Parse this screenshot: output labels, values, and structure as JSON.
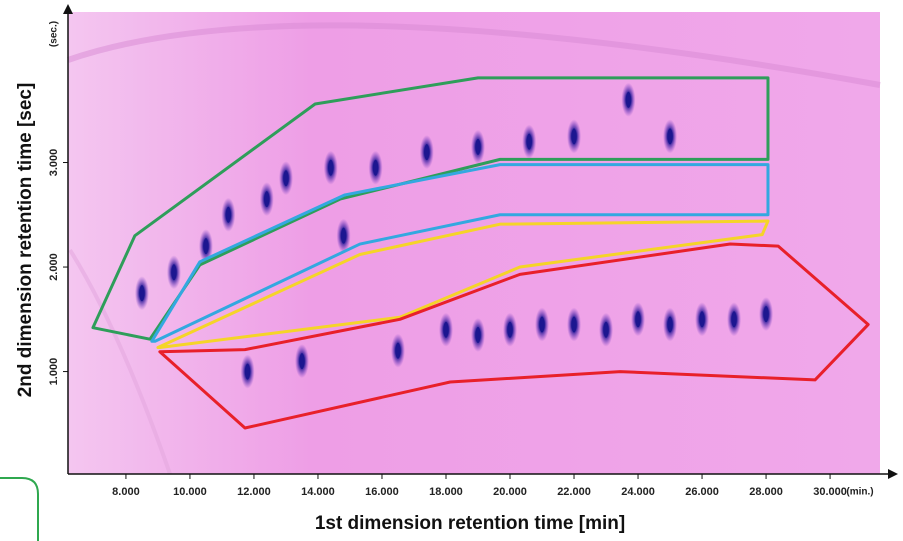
{
  "chart_data": {
    "type": "contour",
    "x_label": "1st dimension retention time [min]",
    "y_label": "2nd dimension retention time [sec]",
    "x_unit": "(min.)",
    "y_unit": "(sec.)",
    "xlim": [
      6.19,
      31.56
    ],
    "ylim": [
      0.02,
      4.44
    ],
    "xticks": [
      {
        "value": 8,
        "label": "8.000"
      },
      {
        "value": 10,
        "label": "10.000"
      },
      {
        "value": 12,
        "label": "12.000"
      },
      {
        "value": 14,
        "label": "14.000"
      },
      {
        "value": 16,
        "label": "16.000"
      },
      {
        "value": 18,
        "label": "18.000"
      },
      {
        "value": 20,
        "label": "20.000"
      },
      {
        "value": 22,
        "label": "22.000"
      },
      {
        "value": 24,
        "label": "24.000"
      },
      {
        "value": 26,
        "label": "26.000"
      },
      {
        "value": 28,
        "label": "28.000"
      },
      {
        "value": 30,
        "label": "30.000"
      }
    ],
    "yticks": [
      {
        "value": 1,
        "label": "1.000"
      },
      {
        "value": 2,
        "label": "2.000"
      },
      {
        "value": 3,
        "label": "3.000"
      }
    ],
    "spot_color": "#1c1690",
    "spots": {
      "x": [
        8.5,
        9.5,
        10.5,
        11.2,
        12.4,
        13.0,
        14.4,
        15.8,
        17.4,
        19.0,
        20.6,
        22.0,
        23.7,
        25.0,
        14.8,
        16.5,
        11.8,
        13.5,
        18.0,
        19.0,
        20.0,
        21.0,
        22.0,
        23.0,
        24.0,
        25.0,
        26.0,
        27.0,
        28.0
      ],
      "y": [
        1.75,
        1.95,
        2.2,
        2.5,
        2.65,
        2.85,
        2.95,
        2.95,
        3.1,
        3.15,
        3.2,
        3.25,
        3.6,
        3.25,
        2.3,
        1.2,
        1.0,
        1.1,
        1.4,
        1.35,
        1.4,
        1.45,
        1.45,
        1.4,
        1.5,
        1.45,
        1.5,
        1.5,
        1.55
      ]
    },
    "regions": [
      {
        "color": "#2e9e5a",
        "x": [
          6.97,
          8.28,
          13.91,
          19.0,
          28.06,
          28.06,
          19.69,
          14.69,
          10.31,
          8.75
        ],
        "y": [
          1.42,
          2.3,
          3.56,
          3.81,
          3.81,
          3.03,
          3.03,
          2.65,
          2.02,
          1.31
        ]
      },
      {
        "color": "#33a8e0",
        "x": [
          8.81,
          10.31,
          14.84,
          19.69,
          28.06,
          28.06,
          19.69,
          15.31,
          8.91
        ],
        "y": [
          1.29,
          2.05,
          2.69,
          2.98,
          2.98,
          2.5,
          2.5,
          2.22,
          1.29
        ]
      },
      {
        "color": "#f5d428",
        "x": [
          9.0,
          15.31,
          19.69,
          28.06,
          27.88,
          20.31,
          16.56,
          9.06
        ],
        "y": [
          1.23,
          2.12,
          2.41,
          2.44,
          2.31,
          2.0,
          1.52,
          1.23
        ]
      },
      {
        "color": "#e8202a",
        "x": [
          9.06,
          11.72,
          16.56,
          20.31,
          26.88,
          28.38,
          31.19,
          29.53,
          23.44,
          18.13,
          11.72
        ],
        "y": [
          1.19,
          1.21,
          1.5,
          1.93,
          2.22,
          2.2,
          1.45,
          0.92,
          1.0,
          0.9,
          0.46
        ]
      }
    ]
  }
}
